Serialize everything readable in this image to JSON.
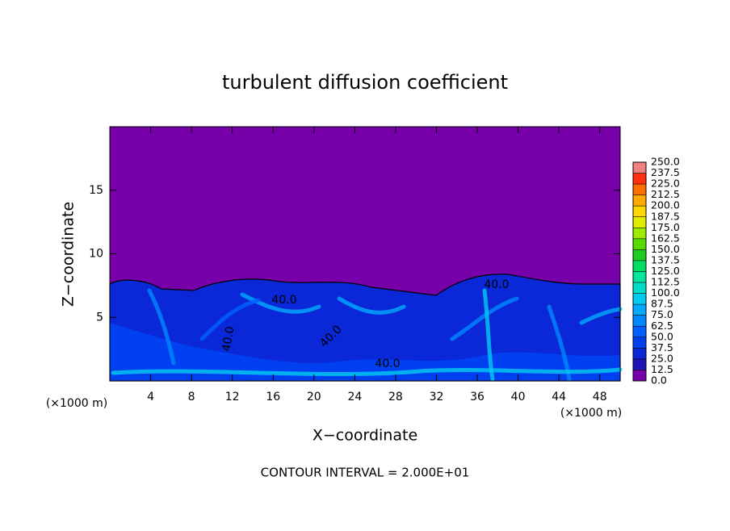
{
  "chart_data": {
    "type": "contour",
    "title": "turbulent diffusion coefficient",
    "x_label": "X−coordinate",
    "y_label": "Z−coordinate",
    "x_unit": "(×1000 m)",
    "y_unit": "(×1000 m)",
    "annotation": "CONTOUR INTERVAL = 2.000E+01",
    "xlim": [
      0,
      50
    ],
    "xticks": [
      4,
      8,
      12,
      16,
      20,
      24,
      28,
      32,
      36,
      40,
      44,
      48
    ],
    "ylim": [
      0,
      20
    ],
    "yticks": [
      5,
      10,
      15
    ],
    "contour_labels": [
      "40.0",
      "40.0",
      "40.0",
      "40.0",
      "40.0"
    ],
    "colorbar": {
      "ticks": [
        {
          "value": 0,
          "label": "0.0"
        },
        {
          "value": 12.5,
          "label": "12.5"
        },
        {
          "value": 25,
          "label": "25.0"
        },
        {
          "value": 37.5,
          "label": "37.5"
        },
        {
          "value": 50,
          "label": "50.0"
        },
        {
          "value": 62.5,
          "label": "62.5"
        },
        {
          "value": 75,
          "label": "75.0"
        },
        {
          "value": 87.5,
          "label": "87.5"
        },
        {
          "value": 100,
          "label": "100.0"
        },
        {
          "value": 112.5,
          "label": "112.5"
        },
        {
          "value": 125,
          "label": "125.0"
        },
        {
          "value": 137.5,
          "label": "137.5"
        },
        {
          "value": 150,
          "label": "150.0"
        },
        {
          "value": 162.5,
          "label": "162.5"
        },
        {
          "value": 175,
          "label": "175.0"
        },
        {
          "value": 187.5,
          "label": "187.5"
        },
        {
          "value": 200,
          "label": "200.0"
        },
        {
          "value": 212.5,
          "label": "212.5"
        },
        {
          "value": 225,
          "label": "225.0"
        },
        {
          "value": 237.5,
          "label": "237.5"
        },
        {
          "value": 250,
          "label": "250.0"
        }
      ],
      "colors": [
        "#7800a8",
        "#1c14b4",
        "#0a28d8",
        "#0040f0",
        "#0060ff",
        "#0088ff",
        "#00aaff",
        "#00ccf0",
        "#00dcc8",
        "#00e49c",
        "#00dc64",
        "#20cc20",
        "#58dc00",
        "#a0ec00",
        "#e0ec00",
        "#ffd800",
        "#ffa800",
        "#ff7000",
        "#ff3010",
        "#f08080"
      ]
    }
  }
}
